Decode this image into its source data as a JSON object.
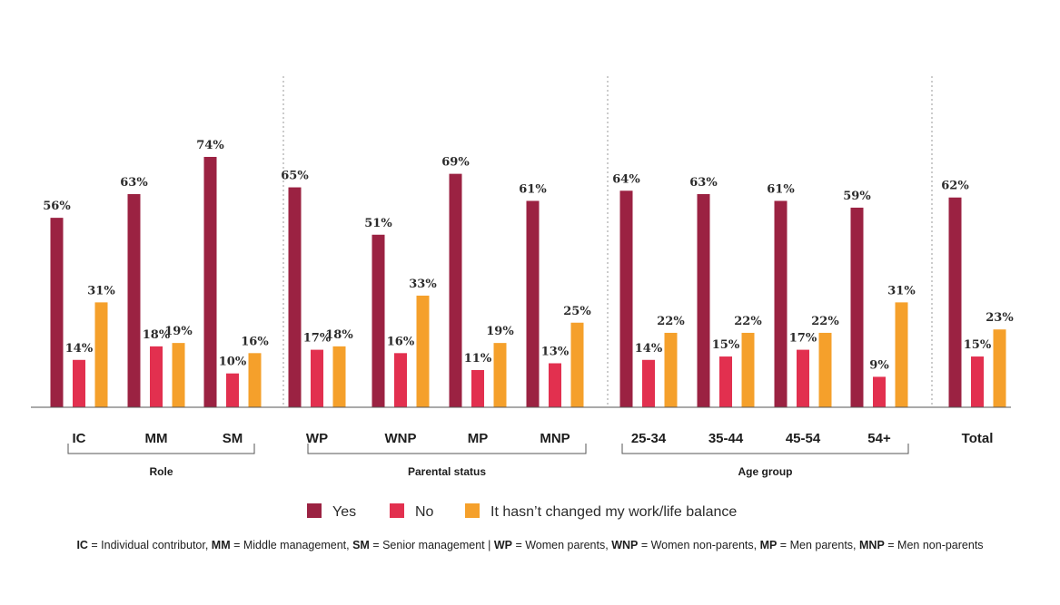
{
  "chart_data": {
    "type": "bar",
    "categories": [
      "IC",
      "MM",
      "SM",
      "WP",
      "WNP",
      "MP",
      "MNP",
      "25-34",
      "35-44",
      "45-54",
      "54+",
      "Total"
    ],
    "series": [
      {
        "name": "Yes",
        "color": "#9b2242",
        "values": [
          56,
          63,
          74,
          65,
          51,
          69,
          61,
          64,
          63,
          61,
          59,
          62
        ]
      },
      {
        "name": "No",
        "color": "#e2304f",
        "values": [
          14,
          18,
          10,
          17,
          16,
          11,
          13,
          14,
          15,
          17,
          9,
          15
        ]
      },
      {
        "name": "It hasn’t changed my work/life balance",
        "color": "#f5a02b",
        "values": [
          31,
          19,
          16,
          18,
          33,
          19,
          25,
          22,
          22,
          22,
          31,
          23
        ]
      }
    ],
    "value_suffix": "%",
    "ylim": [
      0,
      80
    ],
    "grid": false,
    "legend_position": "bottom",
    "groups": [
      {
        "label": "Role",
        "categories": [
          "IC",
          "MM",
          "SM"
        ]
      },
      {
        "label": "Parental status",
        "categories": [
          "WP",
          "WNP",
          "MP",
          "MNP"
        ]
      },
      {
        "label": "Age group",
        "categories": [
          "25-34",
          "35-44",
          "45-54",
          "54+"
        ]
      },
      {
        "label": "",
        "categories": [
          "Total"
        ]
      }
    ]
  },
  "footnote": [
    {
      "bold": "IC",
      "text": " = Individual contributor,  "
    },
    {
      "bold": "MM",
      "text": " = Middle management, "
    },
    {
      "bold": "SM",
      "text": " = Senior management | "
    },
    {
      "bold": "WP",
      "text": " = Women parents, "
    },
    {
      "bold": "WNP",
      "text": " = Women non-parents, "
    },
    {
      "bold": "MP",
      "text": " = Men parents, "
    },
    {
      "bold": "MNP",
      "text": " = Men non-parents"
    }
  ]
}
